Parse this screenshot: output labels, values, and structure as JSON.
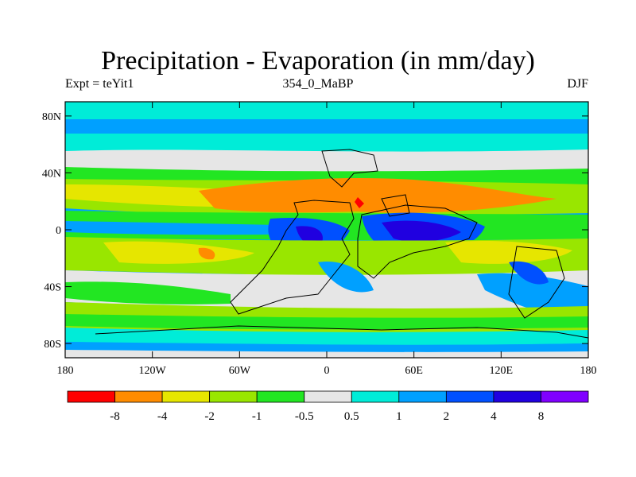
{
  "title": "Precipitation - Evaporation (in mm/day)",
  "left_label": "Expt = teYit1",
  "center_label": "354_0_MaBP",
  "right_label": "DJF",
  "lat_ticks": [
    "80N",
    "40N",
    "0",
    "40S",
    "80S"
  ],
  "lat_values": [
    80,
    40,
    0,
    -40,
    -80
  ],
  "lon_ticks": [
    "180",
    "120W",
    "60W",
    "0",
    "60E",
    "120E",
    "180"
  ],
  "lon_values": [
    -180,
    -120,
    -60,
    0,
    60,
    120,
    180
  ],
  "colors": {
    "c_lt_m8": "#ff0000",
    "c_m8_m4": "#ff8c00",
    "c_m4_m2": "#e6e600",
    "c_m2_m1": "#99e600",
    "c_m1_m05": "#22e622",
    "c_m05_05": "#e6e6e6",
    "c_05_1": "#00ecd8",
    "c_1_2": "#00a0ff",
    "c_2_4": "#0050ff",
    "c_4_8": "#2000e0",
    "c_gt_8": "#8000ff"
  },
  "colorbar": {
    "labels": [
      "-8",
      "-4",
      "-2",
      "-1",
      "-0.5",
      "0.5",
      "1",
      "2",
      "4",
      "8"
    ],
    "swatches": [
      "#ff0000",
      "#ff8c00",
      "#e6e600",
      "#99e600",
      "#22e622",
      "#e6e6e6",
      "#00ecd8",
      "#00a0ff",
      "#0050ff",
      "#2000e0",
      "#8000ff"
    ]
  }
}
